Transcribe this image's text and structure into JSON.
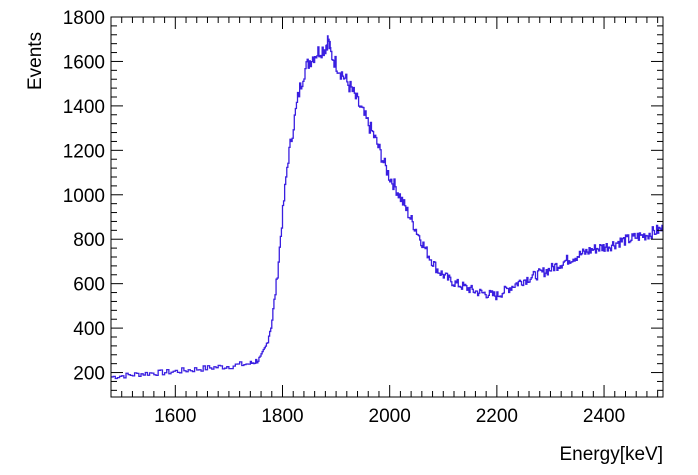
{
  "chart_data": {
    "type": "line",
    "style": "step-histogram",
    "title": "",
    "xlabel": "Energy[keV]",
    "ylabel": "Events",
    "xlim": [
      1480,
      2510
    ],
    "ylim": [
      90,
      1800
    ],
    "x_ticks": [
      1600,
      1800,
      2000,
      2200,
      2400
    ],
    "y_ticks": [
      200,
      400,
      600,
      800,
      1000,
      1200,
      1400,
      1600,
      1800
    ],
    "grid": false,
    "legend": "none",
    "colors": {
      "line": "#3a1fe0",
      "frame": "#000000",
      "background": "#ffffff"
    },
    "series": [
      {
        "x": [
          1480,
          1500,
          1520,
          1540,
          1560,
          1580,
          1600,
          1620,
          1640,
          1660,
          1680,
          1700,
          1720,
          1740,
          1750,
          1760,
          1770,
          1780,
          1790,
          1800,
          1810,
          1820,
          1830,
          1840,
          1850,
          1860,
          1870,
          1880,
          1885,
          1890,
          1900,
          1910,
          1920,
          1930,
          1940,
          1950,
          1960,
          1970,
          1980,
          1990,
          2000,
          2010,
          2020,
          2030,
          2040,
          2050,
          2060,
          2070,
          2080,
          2090,
          2100,
          2110,
          2120,
          2130,
          2140,
          2150,
          2160,
          2170,
          2180,
          2190,
          2200,
          2210,
          2220,
          2230,
          2240,
          2250,
          2260,
          2270,
          2280,
          2290,
          2300,
          2310,
          2320,
          2330,
          2340,
          2350,
          2360,
          2370,
          2380,
          2390,
          2400,
          2410,
          2420,
          2430,
          2440,
          2450,
          2460,
          2470,
          2480,
          2490,
          2500,
          2510
        ],
        "y": [
          180,
          185,
          190,
          195,
          198,
          200,
          205,
          210,
          215,
          220,
          225,
          228,
          235,
          240,
          250,
          265,
          320,
          420,
          620,
          900,
          1150,
          1300,
          1450,
          1550,
          1600,
          1630,
          1650,
          1660,
          1700,
          1640,
          1590,
          1550,
          1510,
          1470,
          1420,
          1370,
          1320,
          1270,
          1210,
          1140,
          1080,
          1040,
          990,
          940,
          890,
          840,
          790,
          740,
          700,
          660,
          640,
          620,
          605,
          595,
          585,
          575,
          565,
          560,
          555,
          550,
          545,
          560,
          575,
          590,
          605,
          615,
          625,
          635,
          645,
          655,
          665,
          680,
          690,
          705,
          715,
          725,
          735,
          745,
          755,
          760,
          765,
          770,
          780,
          790,
          795,
          800,
          810,
          815,
          820,
          830,
          840,
          845
        ]
      }
    ]
  }
}
